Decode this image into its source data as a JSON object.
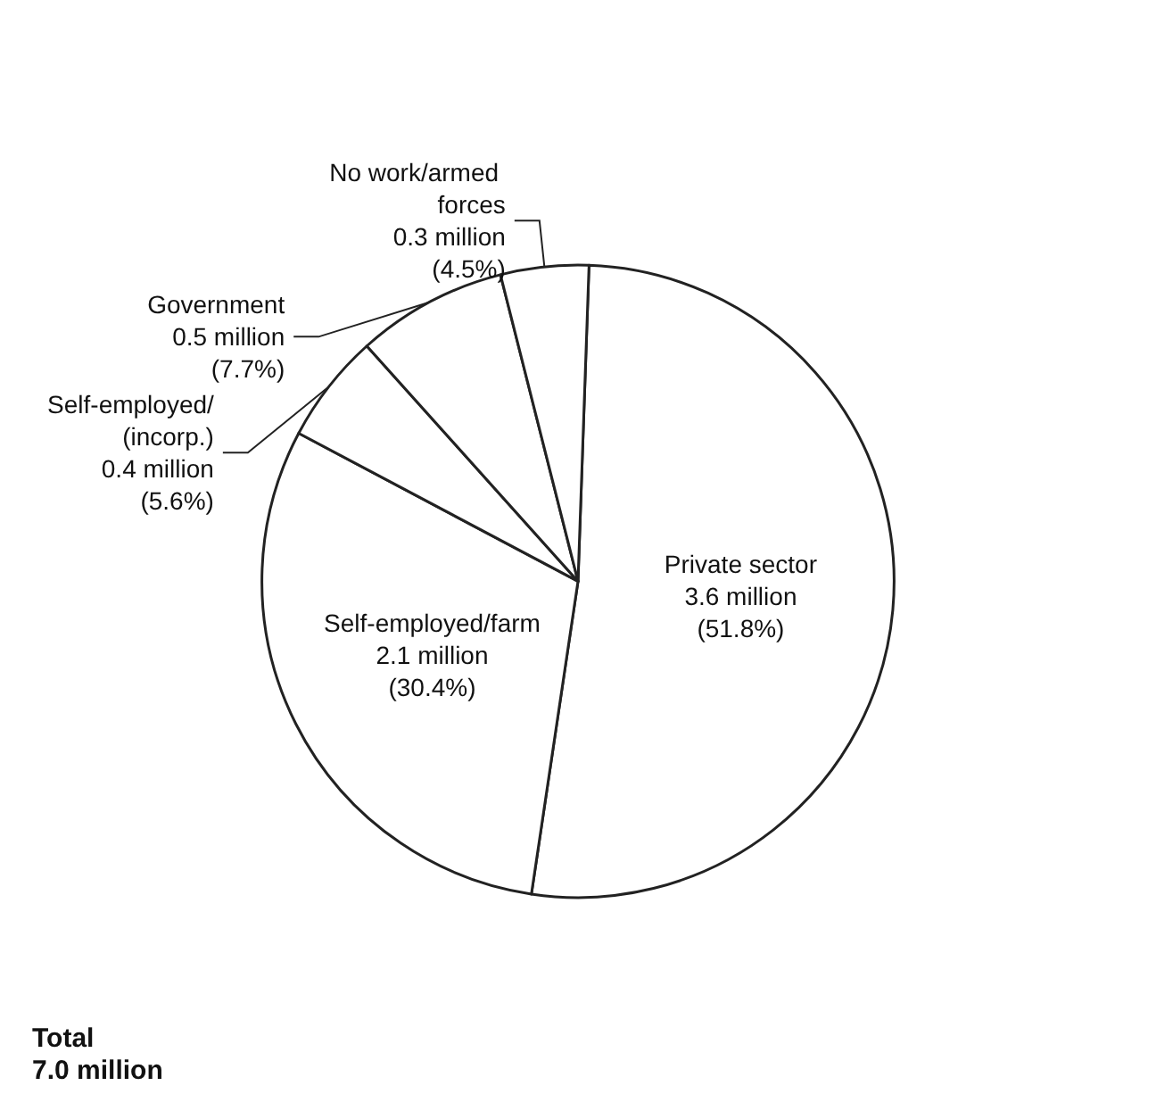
{
  "chart_data": {
    "type": "pie",
    "categories": [
      "Private sector",
      "Self-employed/farm",
      "Self-employed/(incorp.)",
      "Government",
      "No work/armed forces"
    ],
    "values": [
      51.8,
      30.4,
      5.6,
      7.7,
      4.5
    ],
    "value_labels": [
      "3.6 million\n(51.8%)",
      "2.1 million\n(30.4%)",
      "0.4 million\n(5.6%)",
      "0.5 million\n(7.7%)",
      "0.3 million\n(4.5%)"
    ],
    "colors": [
      "#ffffff",
      "#ffffff",
      "#ffffff",
      "#ffffff",
      "#ffffff"
    ],
    "legend": false,
    "annotations": [
      "Total\n7.0 million"
    ]
  }
}
